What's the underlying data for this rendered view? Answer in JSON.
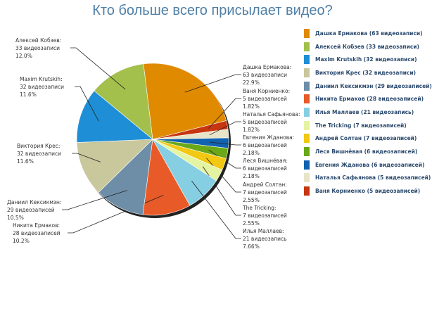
{
  "chart_data": {
    "type": "pie",
    "title": "Кто больше всего присылает видео?",
    "legend_position": "right",
    "slices": [
      {
        "name": "Дашка Ермакова",
        "value": 63,
        "unit": "видеозаписи",
        "percent": "22.9%",
        "legend": "Дашка Ермакова (63 видеозаписи)",
        "color": "#e08a00"
      },
      {
        "name": "Ваня Корниенко",
        "value": 5,
        "unit": "видеозаписей",
        "percent": "1.82%",
        "legend": "Ваня Корниенко (5 видеозаписей)",
        "color": "#c8360f"
      },
      {
        "name": "Наталья Сафьянова",
        "value": 5,
        "unit": "видеозаписей",
        "percent": "1.82%",
        "legend": "Наталья Сафьянова (5 видеозаписей)",
        "color": "#e8e4c8"
      },
      {
        "name": "Евгения Жданова",
        "value": 6,
        "unit": "видеозаписей",
        "percent": "2.18%",
        "legend": "Евгения Жданова (6 видеозаписей)",
        "color": "#1162b0"
      },
      {
        "name": "Леся Вишнёвая",
        "value": 6,
        "unit": "видеозаписей",
        "percent": "2.18%",
        "legend": "Леся Вишнёвая (6 видеозаписей)",
        "color": "#6aa818"
      },
      {
        "name": "Андрей Солтан",
        "value": 7,
        "unit": "видеозаписей",
        "percent": "2.55%",
        "legend": "Андрей Солтан (7 видеозаписей)",
        "color": "#f2c812"
      },
      {
        "name": "The Tricking",
        "value": 7,
        "unit": "видеозаписей",
        "percent": "2.55%",
        "legend": "The Tricking (7 видеозаписей)",
        "color": "#e4f4a2"
      },
      {
        "name": "Илья Маллаев",
        "value": 21,
        "unit": "видеозапись",
        "percent": "7.66%",
        "legend": "Илья Маллаев (21 видеозапись)",
        "color": "#86cfe2"
      },
      {
        "name": "Никита Ермаков",
        "value": 28,
        "unit": "видеозаписей",
        "percent": "10.2%",
        "legend": "Никита Ермаков (28 видеозаписей)",
        "color": "#e85a28"
      },
      {
        "name": "Даниил Кексикмэн",
        "value": 29,
        "unit": "видеозаписей",
        "percent": "10.5%",
        "legend": "Даниил Кексикмэн (29 видеозаписей)",
        "color": "#6e8ea8"
      },
      {
        "name": "Виктория Крес",
        "value": 32,
        "unit": "видеозаписи",
        "percent": "11.6%",
        "legend": "Виктория Крес (32 видеозаписи)",
        "color": "#c9c79c"
      },
      {
        "name": "Maxim Krutskih",
        "value": 32,
        "unit": "видеозаписи",
        "percent": "11.6%",
        "legend": "Maxim Krutskih (32 видеозаписи)",
        "color": "#1e8fd6"
      },
      {
        "name": "Алексей Кобзев",
        "value": 33,
        "unit": "видеозаписи",
        "percent": "12.0%",
        "legend": "Алексей Кобзев (33 видеозаписи)",
        "color": "#a3bf4c"
      }
    ],
    "legend_order": [
      0,
      12,
      11,
      10,
      9,
      8,
      7,
      6,
      5,
      4,
      3,
      2,
      1
    ]
  }
}
